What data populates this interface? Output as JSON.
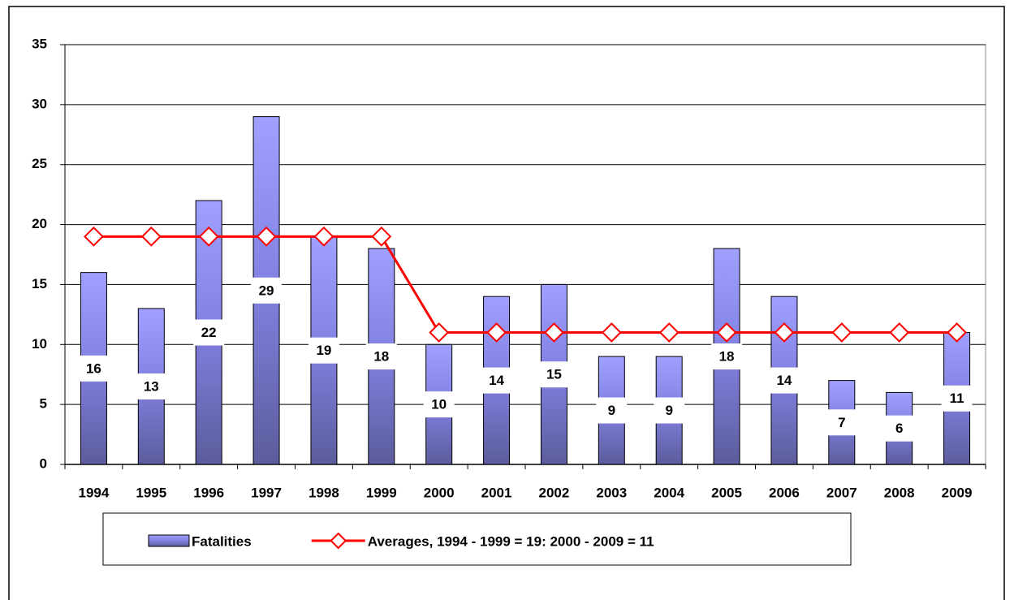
{
  "chart_data": {
    "type": "bar",
    "categories": [
      "1994",
      "1995",
      "1996",
      "1997",
      "1998",
      "1999",
      "2000",
      "2001",
      "2002",
      "2003",
      "2004",
      "2005",
      "2006",
      "2007",
      "2008",
      "2009"
    ],
    "series": [
      {
        "name": "Fatalities",
        "type": "bar",
        "color": "#8080e0",
        "values": [
          16,
          13,
          22,
          29,
          19,
          18,
          10,
          14,
          15,
          9,
          9,
          18,
          14,
          7,
          6,
          11
        ]
      },
      {
        "name": "Averages, 1994 - 1999 = 19: 2000 - 2009 = 11",
        "type": "line",
        "color": "#ff0000",
        "values": [
          19,
          19,
          19,
          19,
          19,
          19,
          11,
          11,
          11,
          11,
          11,
          11,
          11,
          11,
          11,
          11
        ]
      }
    ],
    "ylim": [
      0,
      35
    ],
    "yticks": [
      0,
      5,
      10,
      15,
      20,
      25,
      30,
      35
    ],
    "grid": true,
    "legend": "bottom"
  }
}
